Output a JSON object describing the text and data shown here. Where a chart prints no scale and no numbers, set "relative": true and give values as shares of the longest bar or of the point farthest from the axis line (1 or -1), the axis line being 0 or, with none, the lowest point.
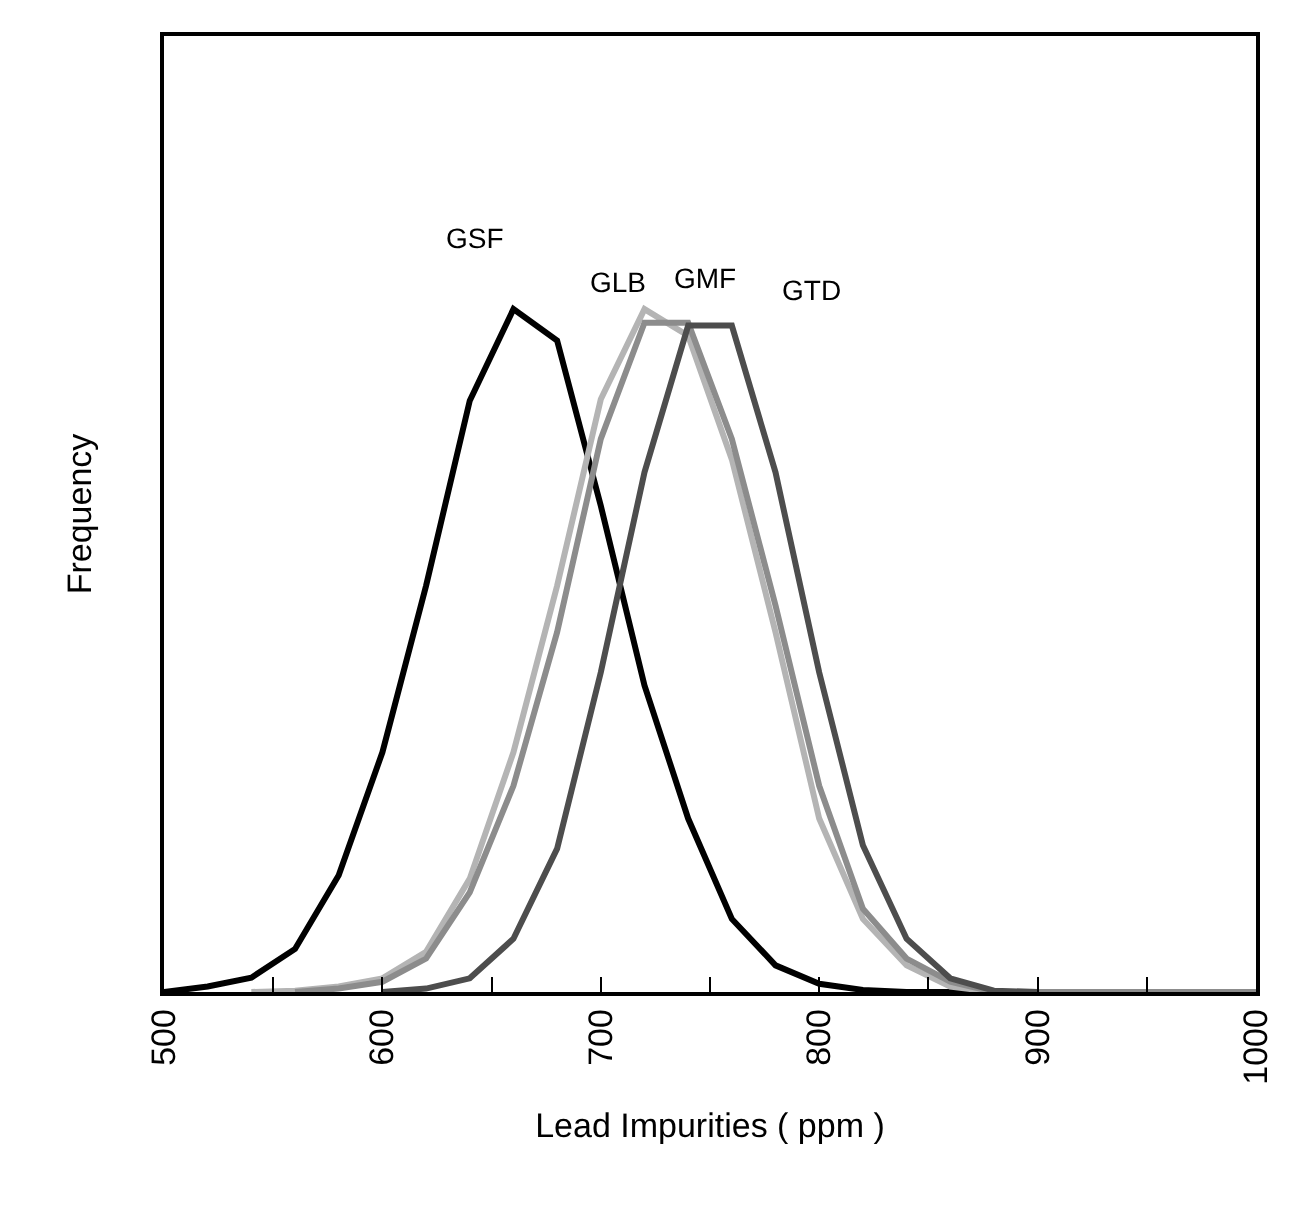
{
  "chart_data": {
    "type": "line",
    "relative": true,
    "xlabel": "Lead Impurities ( ppm )",
    "ylabel": "Frequency",
    "xlim": [
      500,
      1000
    ],
    "xticks": [
      500,
      {
        "value": 550,
        "label": null
      },
      600,
      {
        "value": 650,
        "label": null
      },
      700,
      {
        "value": 750,
        "label": null
      },
      800,
      {
        "value": 850,
        "label": null
      },
      900,
      {
        "value": 950,
        "label": null
      },
      1000
    ],
    "legend": false,
    "marker": "none",
    "line_style": "solid",
    "series": [
      {
        "name": "GSF",
        "color": "#000000",
        "x": [
          500,
          520,
          540,
          560,
          580,
          600,
          620,
          640,
          660,
          680,
          700,
          720,
          740,
          760,
          780,
          800,
          820,
          840,
          1000
        ],
        "values": [
          0,
          0.008,
          0.021,
          0.063,
          0.171,
          0.351,
          0.595,
          0.866,
          1.0,
          0.954,
          0.712,
          0.449,
          0.254,
          0.107,
          0.039,
          0.012,
          0.003,
          0,
          0
        ]
      },
      {
        "name": "GLB",
        "color": "#b4b4b4",
        "x": [
          540,
          560,
          580,
          600,
          620,
          640,
          660,
          680,
          700,
          720,
          740,
          760,
          780,
          800,
          820,
          840,
          860,
          880,
          1000
        ],
        "values": [
          0,
          0.002,
          0.008,
          0.02,
          0.059,
          0.166,
          0.351,
          0.595,
          0.868,
          1.0,
          0.961,
          0.78,
          0.527,
          0.254,
          0.107,
          0.039,
          0.008,
          0,
          0
        ]
      },
      {
        "name": "GMF",
        "color": "#8c8c8c",
        "x": [
          560,
          580,
          600,
          620,
          640,
          660,
          680,
          700,
          720,
          740,
          760,
          780,
          800,
          820,
          840,
          860,
          880,
          1000
        ],
        "values": [
          0,
          0.005,
          0.015,
          0.049,
          0.146,
          0.302,
          0.527,
          0.81,
          0.98,
          0.98,
          0.81,
          0.566,
          0.302,
          0.122,
          0.049,
          0.015,
          0,
          0
        ]
      },
      {
        "name": "GTD",
        "color": "#4d4d4d",
        "x": [
          600,
          620,
          640,
          660,
          680,
          700,
          720,
          740,
          760,
          780,
          800,
          820,
          840,
          860,
          880,
          900
        ],
        "values": [
          0,
          0.005,
          0.02,
          0.078,
          0.21,
          0.468,
          0.761,
          0.976,
          0.976,
          0.761,
          0.468,
          0.215,
          0.078,
          0.02,
          0.002,
          0
        ]
      }
    ]
  }
}
